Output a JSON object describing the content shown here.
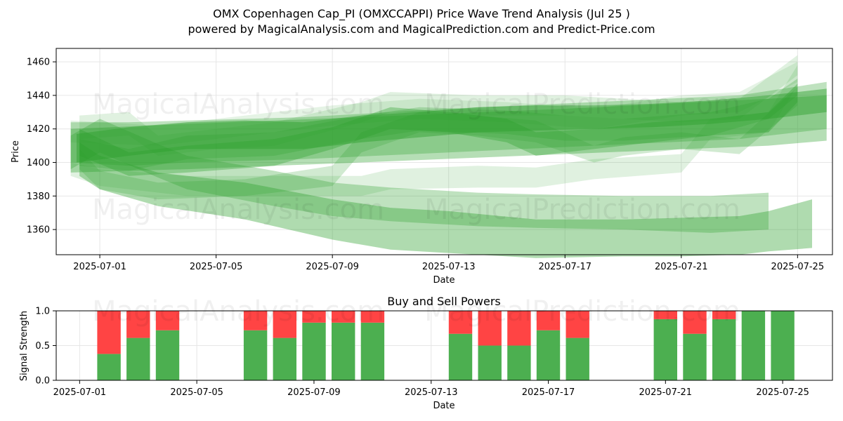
{
  "header": {
    "title": "OMX Copenhagen Cap_PI (OMXCCAPPI) Price Wave Trend Analysis (Jul 25 )",
    "subtitle": "powered by MagicalAnalysis.com and MagicalPrediction.com and Predict-Price.com"
  },
  "watermarks": [
    "MagicalAnalysis.com",
    "MagicalPrediction.com"
  ],
  "colors": {
    "band": "#2ca02c",
    "buy": "#4caf50",
    "sell": "#ff4444",
    "grid": "#e6e6e6"
  },
  "chart_data": [
    {
      "type": "area",
      "xlabel": "Date",
      "ylabel": "Price",
      "xlim": [
        "2025-06-29.5",
        "2025-07-26.2"
      ],
      "ylim": [
        1345,
        1468
      ],
      "x_ticks": [
        "2025-07-01",
        "2025-07-05",
        "2025-07-09",
        "2025-07-13",
        "2025-07-17",
        "2025-07-21",
        "2025-07-25"
      ],
      "y_ticks": [
        1360,
        1380,
        1400,
        1420,
        1440,
        1460
      ],
      "grid": true,
      "series": [
        {
          "opacity": 0.35,
          "points": [
            [
              "2025-06-30",
              1420,
              1394
            ],
            [
              "2025-07-04",
              1423,
              1396
            ],
            [
              "2025-07-10",
              1427,
              1400
            ],
            [
              "2025-07-17",
              1432,
              1405
            ],
            [
              "2025-07-24",
              1438,
              1410
            ],
            [
              "2025-07-26",
              1440,
              1413
            ]
          ]
        },
        {
          "opacity": 0.3,
          "points": [
            [
              "2025-06-30",
              1424,
              1400
            ],
            [
              "2025-07-02",
              1424,
              1398
            ],
            [
              "2025-07-04",
              1425,
              1400
            ],
            [
              "2025-07-08",
              1427,
              1402
            ],
            [
              "2025-07-13",
              1432,
              1406
            ],
            [
              "2025-07-18",
              1436,
              1410
            ],
            [
              "2025-07-23",
              1440,
              1414
            ],
            [
              "2025-07-26",
              1448,
              1420
            ]
          ]
        },
        {
          "opacity": 0.35,
          "points": [
            [
              "2025-06-30.3",
              1420,
              1404
            ],
            [
              "2025-07-02",
              1406,
              1392
            ],
            [
              "2025-07-04",
              1410,
              1394
            ],
            [
              "2025-07-07",
              1414,
              1398
            ],
            [
              "2025-07-09",
              1421,
              1408
            ],
            [
              "2025-07-11",
              1433,
              1420
            ],
            [
              "2025-07-13",
              1430,
              1418
            ],
            [
              "2025-07-15",
              1426,
              1412
            ],
            [
              "2025-07-16",
              1418,
              1404
            ],
            [
              "2025-07-18",
              1420,
              1408
            ],
            [
              "2025-07-20",
              1424,
              1412
            ],
            [
              "2025-07-22",
              1426,
              1416
            ],
            [
              "2025-07-24",
              1430,
              1418
            ],
            [
              "2025-07-25",
              1447,
              1436
            ]
          ]
        },
        {
          "opacity": 0.25,
          "points": [
            [
              "2025-06-30.3",
              1414,
              1398
            ],
            [
              "2025-07-02",
              1408,
              1395
            ],
            [
              "2025-07-04",
              1416,
              1402
            ],
            [
              "2025-07-07",
              1418,
              1404
            ],
            [
              "2025-07-10",
              1428,
              1414
            ],
            [
              "2025-07-12",
              1433,
              1419
            ],
            [
              "2025-07-15",
              1431,
              1417
            ],
            [
              "2025-07-17",
              1428,
              1413
            ],
            [
              "2025-07-19",
              1426,
              1413
            ],
            [
              "2025-07-22",
              1430,
              1416
            ],
            [
              "2025-07-24",
              1438,
              1426
            ],
            [
              "2025-07-25",
              1450,
              1440
            ]
          ]
        },
        {
          "opacity": 0.22,
          "points": [
            [
              "2025-06-30.3",
              1408,
              1396
            ],
            [
              "2025-07-01",
              1395,
              1384
            ],
            [
              "2025-07-03",
              1388,
              1378
            ],
            [
              "2025-07-06",
              1390,
              1380
            ],
            [
              "2025-07-09",
              1398,
              1386
            ],
            [
              "2025-07-10",
              1418,
              1406
            ],
            [
              "2025-07-12",
              1430,
              1418
            ],
            [
              "2025-07-14",
              1428,
              1416
            ],
            [
              "2025-07-16",
              1425,
              1412
            ],
            [
              "2025-07-18",
              1410,
              1400
            ],
            [
              "2025-07-19",
              1415,
              1404
            ],
            [
              "2025-07-21",
              1418,
              1408
            ],
            [
              "2025-07-23",
              1414,
              1405
            ],
            [
              "2025-07-25",
              1445,
              1434
            ]
          ]
        },
        {
          "opacity": 0.15,
          "points": [
            [
              "2025-06-30",
              1400,
              1392
            ],
            [
              "2025-07-01",
              1396,
              1386
            ],
            [
              "2025-07-04",
              1392,
              1380
            ],
            [
              "2025-07-07",
              1392,
              1380
            ],
            [
              "2025-07-10",
              1392,
              1380
            ],
            [
              "2025-07-11",
              1396,
              1384
            ],
            [
              "2025-07-14",
              1398,
              1385
            ],
            [
              "2025-07-16",
              1397,
              1385
            ],
            [
              "2025-07-18",
              1402,
              1390
            ],
            [
              "2025-07-21",
              1405,
              1394
            ],
            [
              "2025-07-22",
              1426,
              1414
            ],
            [
              "2025-07-24",
              1430,
              1418
            ],
            [
              "2025-07-25",
              1458,
              1446
            ]
          ]
        },
        {
          "opacity": 0.15,
          "points": [
            [
              "2025-06-30.3",
              1428,
              1414
            ],
            [
              "2025-07-02",
              1430,
              1416
            ],
            [
              "2025-07-03",
              1416,
              1404
            ],
            [
              "2025-07-05",
              1420,
              1408
            ],
            [
              "2025-07-07",
              1424,
              1410
            ],
            [
              "2025-07-10",
              1436,
              1424
            ],
            [
              "2025-07-11",
              1442,
              1430
            ],
            [
              "2025-07-14",
              1440,
              1428
            ],
            [
              "2025-07-17",
              1440,
              1428
            ],
            [
              "2025-07-19",
              1438,
              1426
            ],
            [
              "2025-07-21",
              1436,
              1424
            ],
            [
              "2025-07-23",
              1438,
              1426
            ],
            [
              "2025-07-25",
              1464,
              1452
            ]
          ]
        },
        {
          "opacity": 0.12,
          "points": [
            [
              "2025-06-30",
              1425,
              1412
            ],
            [
              "2025-07-03",
              1422,
              1410
            ],
            [
              "2025-07-06",
              1428,
              1416
            ],
            [
              "2025-07-09",
              1434,
              1422
            ],
            [
              "2025-07-12",
              1438,
              1426
            ],
            [
              "2025-07-15",
              1436,
              1424
            ],
            [
              "2025-07-18",
              1432,
              1420
            ],
            [
              "2025-07-21",
              1440,
              1428
            ],
            [
              "2025-07-23",
              1442,
              1430
            ],
            [
              "2025-07-25",
              1460,
              1448
            ]
          ]
        },
        {
          "opacity": 0.38,
          "points": [
            [
              "2025-06-30.3",
              1412,
              1392
            ],
            [
              "2025-07-01",
              1404,
              1384
            ],
            [
              "2025-07-03",
              1394,
              1374
            ],
            [
              "2025-07-06",
              1388,
              1366
            ],
            [
              "2025-07-09",
              1378,
              1354
            ],
            [
              "2025-07-11",
              1373,
              1348
            ],
            [
              "2025-07-13",
              1371,
              1346
            ],
            [
              "2025-07-16",
              1366,
              1343
            ],
            [
              "2025-07-19",
              1366,
              1344
            ],
            [
              "2025-07-21",
              1367,
              1344
            ],
            [
              "2025-07-23",
              1368,
              1345
            ],
            [
              "2025-07-24",
              1371,
              1347
            ],
            [
              "2025-07-25.5",
              1378,
              1349
            ]
          ]
        },
        {
          "opacity": 0.3,
          "points": [
            [
              "2025-06-30",
              1416,
              1396
            ],
            [
              "2025-07-01",
              1426,
              1406
            ],
            [
              "2025-07-03",
              1411,
              1391
            ],
            [
              "2025-07-04",
              1404,
              1384
            ],
            [
              "2025-07-07",
              1395,
              1374
            ],
            [
              "2025-07-09",
              1388,
              1368
            ],
            [
              "2025-07-11",
              1385,
              1365
            ],
            [
              "2025-07-14",
              1382,
              1362
            ],
            [
              "2025-07-16",
              1381,
              1361
            ],
            [
              "2025-07-19",
              1380,
              1360
            ],
            [
              "2025-07-22",
              1380,
              1358
            ],
            [
              "2025-07-24",
              1382,
              1360
            ]
          ]
        },
        {
          "opacity": 0.45,
          "points": [
            [
              "2025-06-30.2",
              1417,
              1400
            ],
            [
              "2025-07-02",
              1421,
              1404
            ],
            [
              "2025-07-04",
              1424,
              1408
            ],
            [
              "2025-07-06",
              1425,
              1408
            ],
            [
              "2025-07-08",
              1424,
              1408
            ],
            [
              "2025-07-10",
              1428,
              1412
            ],
            [
              "2025-07-12",
              1430,
              1415
            ],
            [
              "2025-07-14",
              1433,
              1418
            ],
            [
              "2025-07-16",
              1434,
              1419
            ],
            [
              "2025-07-18",
              1434,
              1420
            ],
            [
              "2025-07-20",
              1435,
              1421
            ],
            [
              "2025-07-22",
              1437,
              1423
            ],
            [
              "2025-07-24",
              1440,
              1426
            ],
            [
              "2025-07-26",
              1444,
              1430
            ]
          ]
        }
      ]
    },
    {
      "type": "bar",
      "title": "Buy and Sell Powers",
      "xlabel": "Date",
      "ylabel": "Signal Strength",
      "xlim": [
        "2025-06-30.2",
        "2025-07-26.7"
      ],
      "ylim": [
        0,
        1.0
      ],
      "y_ticks": [
        0.0,
        0.5,
        1.0
      ],
      "x_ticks": [
        "2025-07-01",
        "2025-07-05",
        "2025-07-09",
        "2025-07-13",
        "2025-07-17",
        "2025-07-21",
        "2025-07-25"
      ],
      "legend": "none",
      "categories": [
        "2025-07-02",
        "2025-07-03",
        "2025-07-04",
        "2025-07-07",
        "2025-07-08",
        "2025-07-09",
        "2025-07-10",
        "2025-07-11",
        "2025-07-14",
        "2025-07-15",
        "2025-07-16",
        "2025-07-17",
        "2025-07-18",
        "2025-07-21",
        "2025-07-22",
        "2025-07-23",
        "2025-07-24",
        "2025-07-25"
      ],
      "series": [
        {
          "name": "Buy",
          "values": [
            0.38,
            0.61,
            0.72,
            0.72,
            0.61,
            0.83,
            0.83,
            0.83,
            0.67,
            0.5,
            0.5,
            0.72,
            0.61,
            0.88,
            0.67,
            0.88,
            1.0,
            1.0
          ]
        },
        {
          "name": "Sell",
          "values": [
            0.62,
            0.39,
            0.28,
            0.28,
            0.39,
            0.17,
            0.17,
            0.17,
            0.33,
            0.5,
            0.5,
            0.28,
            0.39,
            0.12,
            0.33,
            0.12,
            0.0,
            0.0
          ]
        }
      ]
    }
  ]
}
